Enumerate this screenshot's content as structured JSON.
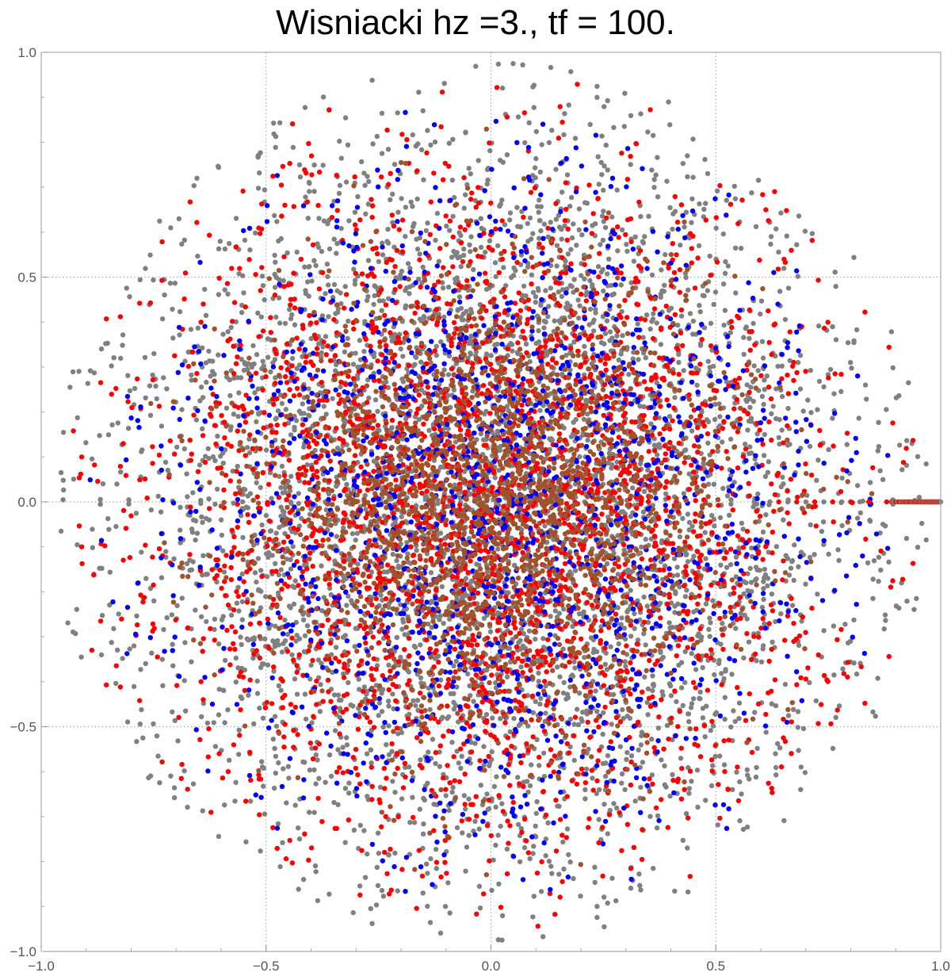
{
  "chart_data": {
    "type": "scatter",
    "title": "Wisniacki hz =3., tf = 100.",
    "xlabel": "",
    "ylabel": "",
    "xlim": [
      -1.0,
      1.0
    ],
    "ylim": [
      -1.0,
      1.0
    ],
    "x_ticks": [
      "−1.0",
      "−0.5",
      "0.0",
      "0.5",
      "1.0"
    ],
    "y_ticks": [
      "1.0",
      "0.5",
      "0.0",
      "−0.5",
      "−1.0"
    ],
    "grid": "dotted lines at ±0.5 and 0",
    "legend": "none",
    "series": [
      {
        "color": "#808080",
        "approx_points": 4200,
        "distribution": "disk, radius ~0.98, most spread"
      },
      {
        "color": "#ff0000",
        "approx_points": 2600,
        "distribution": "disk, radius ~0.95"
      },
      {
        "color": "#0000ff",
        "approx_points": 1400,
        "distribution": "disk, radius ~0.9"
      },
      {
        "color": "#a0522d",
        "approx_points": 1800,
        "distribution": "concentrated near center, radius ~0.85"
      }
    ],
    "annotations": "Dense line of real eigenvalues along y=0 from x≈0.88 to x=1.0"
  }
}
